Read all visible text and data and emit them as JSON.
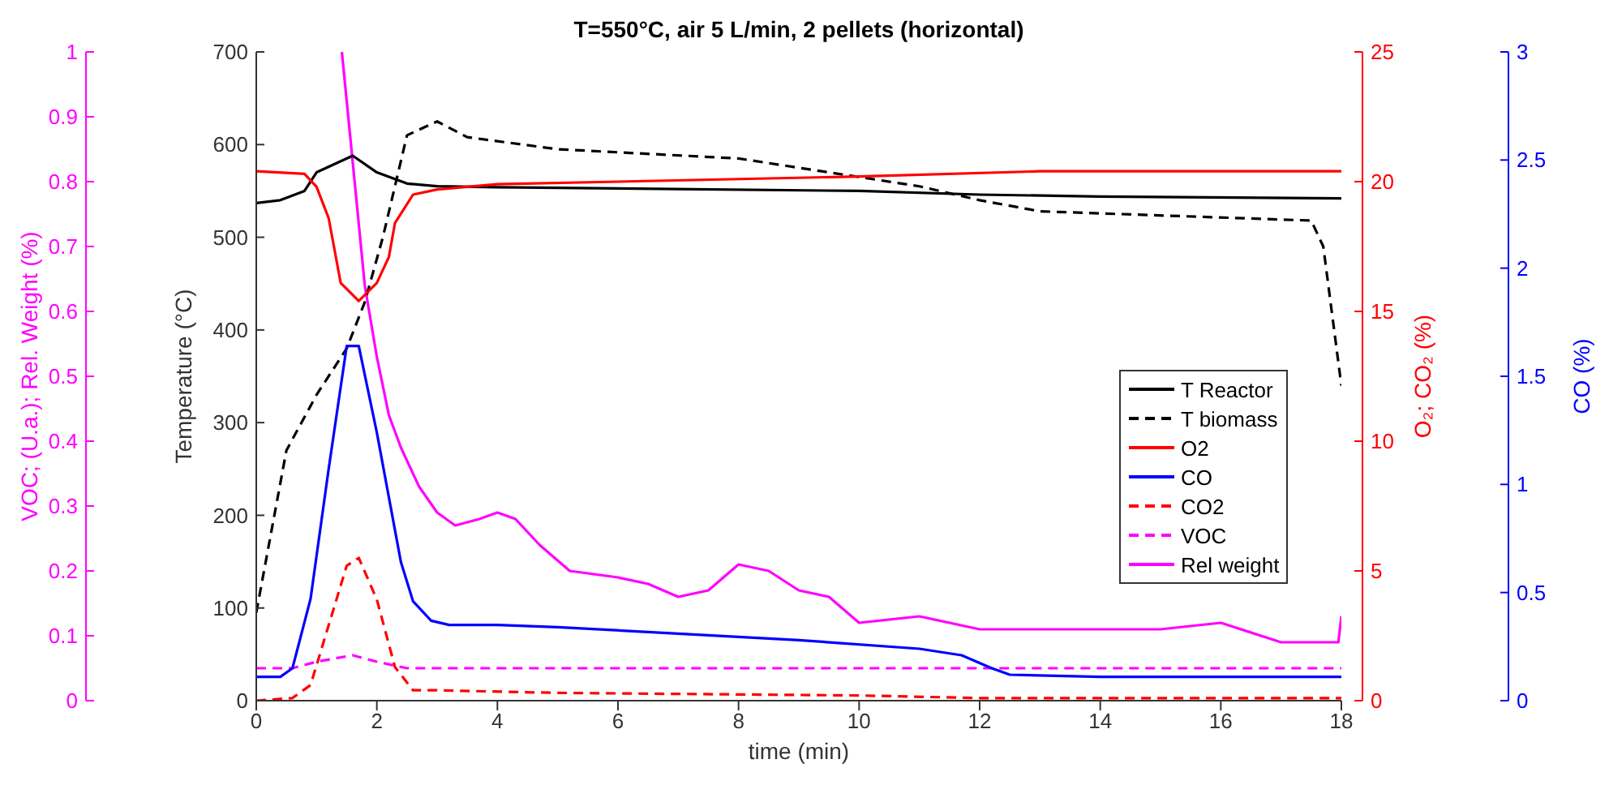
{
  "chart_data": [
    {
      "type": "line",
      "title": "T=550°C, air 5 L/min, 2 pellets (horizontal)",
      "xlabel": "time (min)",
      "ylabel": "Temperature (°C)",
      "y2label": "O₂; CO₂ (%)",
      "y3label": "CO (%)",
      "xlim": [
        0,
        18
      ],
      "xticks": [
        0,
        2,
        4,
        6,
        8,
        10,
        12,
        14,
        16,
        18
      ],
      "ylim": [
        0,
        700
      ],
      "yticks": [
        0,
        100,
        200,
        300,
        400,
        500,
        600,
        700
      ],
      "y2lim": [
        0,
        25
      ],
      "y2ticks": [
        0,
        5,
        10,
        15,
        20,
        25
      ],
      "y3lim": [
        0,
        3
      ],
      "y3ticks": [
        0,
        0.5,
        1,
        1.5,
        2,
        2.5,
        3
      ],
      "grid": false,
      "legend": "right",
      "marker": "none",
      "series": [
        {
          "name": "T Reactor",
          "color": "#000000",
          "line_style": "solid",
          "x": [
            0,
            0.4,
            0.8,
            1.0,
            1.6,
            2.0,
            2.5,
            3,
            4,
            10,
            12,
            14,
            18
          ],
          "values": [
            537,
            540,
            550,
            570,
            588,
            570,
            558,
            555,
            554,
            550,
            546,
            544,
            542
          ]
        },
        {
          "name": "T biomass",
          "color": "#000000",
          "line_style": "dashed",
          "x": [
            0,
            0.3,
            0.5,
            1.0,
            1.5,
            1.8,
            2.1,
            2.5,
            3.0,
            3.5,
            5,
            8,
            10,
            11,
            12,
            13,
            17.5,
            17.7,
            18
          ],
          "values": [
            95,
            200,
            270,
            330,
            380,
            430,
            500,
            610,
            625,
            608,
            595,
            585,
            565,
            555,
            540,
            528,
            518,
            490,
            340
          ]
        },
        {
          "name": "O2",
          "color": "#ff0000",
          "line_style": "solid",
          "axis": "y2",
          "x": [
            0,
            0.8,
            1.0,
            1.2,
            1.4,
            1.7,
            2.0,
            2.2,
            2.3,
            2.6,
            3,
            4,
            6,
            10,
            13,
            18
          ],
          "values": [
            20.4,
            20.3,
            19.8,
            18.6,
            16.1,
            15.4,
            16.1,
            17.1,
            18.4,
            19.5,
            19.7,
            19.9,
            20.0,
            20.2,
            20.4,
            20.4
          ]
        },
        {
          "name": "CO",
          "color": "#0000ff",
          "line_style": "solid",
          "axis": "y3",
          "x": [
            0,
            0.4,
            0.6,
            0.9,
            1.2,
            1.5,
            1.7,
            2.0,
            2.2,
            2.4,
            2.6,
            2.9,
            3.2,
            4,
            5,
            7,
            9,
            11,
            11.7,
            12.2,
            12.5,
            14,
            18
          ],
          "values": [
            0.11,
            0.11,
            0.15,
            0.47,
            1.07,
            1.64,
            1.64,
            1.24,
            0.94,
            0.64,
            0.46,
            0.37,
            0.35,
            0.35,
            0.34,
            0.31,
            0.28,
            0.24,
            0.21,
            0.15,
            0.12,
            0.11,
            0.11
          ]
        },
        {
          "name": "CO2",
          "color": "#ff0000",
          "line_style": "dashed",
          "axis": "y2",
          "x": [
            0,
            0.6,
            0.9,
            1.2,
            1.5,
            1.7,
            2.0,
            2.3,
            2.6,
            3,
            5,
            10,
            12,
            18
          ],
          "values": [
            0,
            0.1,
            0.6,
            2.9,
            5.2,
            5.5,
            3.9,
            1.3,
            0.4,
            0.4,
            0.3,
            0.2,
            0.1,
            0.1
          ]
        }
      ]
    },
    {
      "type": "line",
      "ylabel": "VOC; (U.a.); Rel. Weight (%)",
      "xlim": [
        0,
        18
      ],
      "ylim": [
        0,
        1
      ],
      "yticks": [
        0,
        0.1,
        0.2,
        0.3,
        0.4,
        0.5,
        0.6,
        0.7,
        0.8,
        0.9,
        1
      ],
      "tick_labels": "y",
      "grid": false,
      "legend": "right",
      "marker": "none",
      "series": [
        {
          "name": "VOC",
          "color": "#ff00ff",
          "line_style": "dashed",
          "x": [
            0,
            0.6,
            1.0,
            1.6,
            2.0,
            2.5,
            18
          ],
          "values": [
            0.05,
            0.05,
            0.06,
            0.07,
            0.06,
            0.05,
            0.05
          ]
        },
        {
          "name": "Rel weight",
          "color": "#ff00ff",
          "line_style": "solid",
          "x": [
            1.42,
            1.6,
            1.8,
            2.0,
            2.2,
            2.4,
            2.7,
            3.0,
            3.3,
            3.7,
            4.0,
            4.3,
            4.7,
            5.2,
            6,
            6.5,
            7,
            7.5,
            8,
            8.5,
            9,
            9.5,
            10,
            11,
            12,
            13,
            14,
            15,
            16,
            17,
            17.95,
            18
          ],
          "values": [
            1.0,
            0.83,
            0.64,
            0.53,
            0.44,
            0.39,
            0.33,
            0.29,
            0.27,
            0.28,
            0.29,
            0.28,
            0.24,
            0.2,
            0.19,
            0.18,
            0.16,
            0.17,
            0.21,
            0.2,
            0.17,
            0.16,
            0.12,
            0.13,
            0.11,
            0.11,
            0.11,
            0.11,
            0.12,
            0.09,
            0.09,
            0.13
          ]
        }
      ]
    }
  ]
}
